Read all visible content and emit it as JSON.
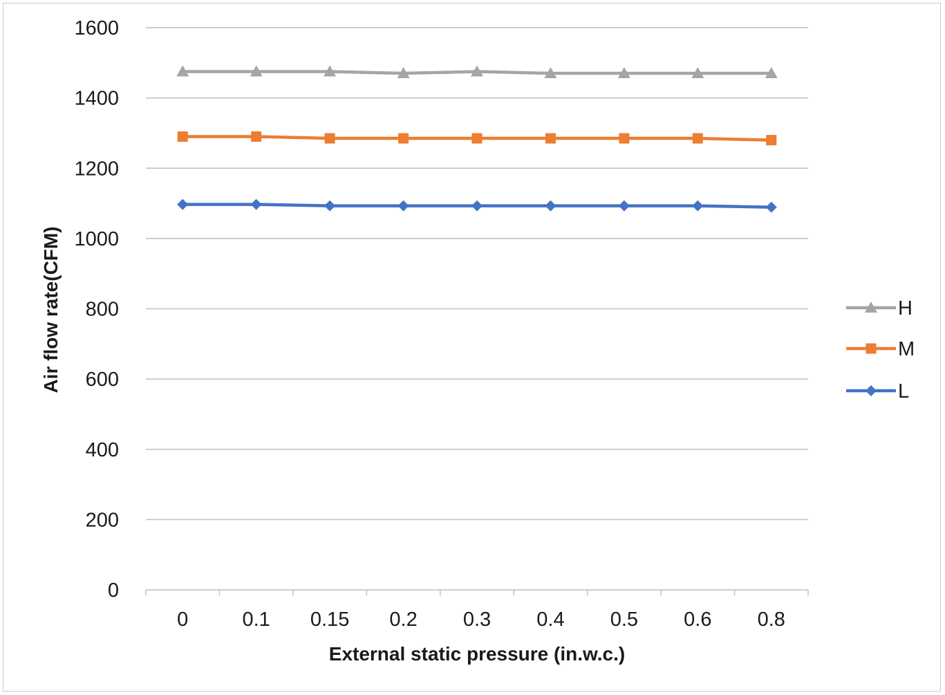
{
  "chart_data": {
    "type": "line",
    "categories": [
      "0",
      "0.1",
      "0.15",
      "0.2",
      "0.3",
      "0.4",
      "0.5",
      "0.6",
      "0.8"
    ],
    "series": [
      {
        "name": "H",
        "color": "#a5a5a5",
        "marker": "triangle",
        "values": [
          1475,
          1475,
          1475,
          1470,
          1475,
          1470,
          1470,
          1470,
          1470
        ]
      },
      {
        "name": "M",
        "color": "#ed7d31",
        "marker": "square",
        "values": [
          1290,
          1290,
          1285,
          1285,
          1285,
          1285,
          1285,
          1285,
          1280
        ]
      },
      {
        "name": "L",
        "color": "#4472c4",
        "marker": "diamond",
        "values": [
          1097,
          1097,
          1093,
          1093,
          1093,
          1093,
          1093,
          1093,
          1089
        ]
      }
    ],
    "xlabel": "External static pressure (in.w.c.)",
    "ylabel": "Air flow rate(CFM)",
    "ylim": [
      0,
      1600
    ],
    "yticks": [
      0,
      200,
      400,
      600,
      800,
      1000,
      1200,
      1400,
      1600
    ],
    "grid": true,
    "legend_position": "right"
  }
}
